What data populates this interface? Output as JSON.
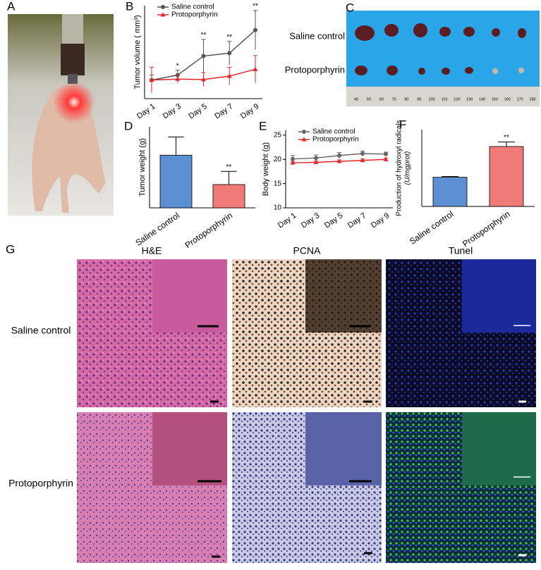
{
  "panel_labels": [
    "A",
    "B",
    "C",
    "D",
    "E",
    "F",
    "G"
  ],
  "chart_data": [
    {
      "type": "line",
      "ylabel": "Tumor volume ( mm³)",
      "categories": [
        "Day 1",
        "Day 3",
        "Day 5",
        "Day 7",
        "Day 9"
      ],
      "series": [
        {
          "name": "Saline control",
          "color": "#555555",
          "marker": "circle",
          "values": [
            190,
            240,
            435,
            465,
            700
          ],
          "errors": [
            50,
            50,
            170,
            120,
            200
          ]
        },
        {
          "name": "Protoporphyrin",
          "color": "#e0262b",
          "marker": "triangle",
          "values": [
            190,
            200,
            195,
            230,
            300
          ],
          "errors": [
            130,
            40,
            70,
            90,
            140
          ]
        }
      ],
      "annotations": [
        {
          "text": "*",
          "x": "Day 3"
        },
        {
          "text": "**",
          "x": "Day 5"
        },
        {
          "text": "**",
          "x": "Day 7"
        },
        {
          "text": "**",
          "x": "Day 9"
        }
      ],
      "ylim": [
        0,
        950
      ],
      "legend": "upper left"
    },
    {
      "type": "bar",
      "ylabel": "Tumor weight (g)",
      "categories": [
        "Saline control",
        "Protoporphyrin"
      ],
      "values": [
        0.52,
        0.23
      ],
      "errors": [
        0.18,
        0.13
      ],
      "colors": [
        "#5b8fd2",
        "#f07a78"
      ],
      "annotations": [
        {
          "text": "**",
          "x": "Protoporphyrin"
        }
      ],
      "ylim": [
        0,
        0.8
      ]
    },
    {
      "type": "line",
      "ylabel": "Body weight (g)",
      "categories": [
        "Day 1",
        "Day 3",
        "Day 5",
        "Day 7",
        "Day 9"
      ],
      "series": [
        {
          "name": "Saline control",
          "color": "#666666",
          "marker": "circle",
          "values": [
            20.1,
            20.3,
            20.8,
            21.2,
            21.1
          ],
          "errors": [
            0.7,
            0.6,
            0.6,
            0.5,
            0.4
          ]
        },
        {
          "name": "Protoporphyrin",
          "color": "#e0262b",
          "marker": "triangle",
          "values": [
            19.3,
            19.4,
            19.6,
            19.8,
            20.0
          ],
          "errors": [
            0.3,
            0.3,
            0.3,
            0.3,
            0.3
          ]
        }
      ],
      "ylim": [
        10,
        26
      ],
      "yticks": [
        10,
        15,
        20,
        25
      ],
      "legend": "upper left"
    },
    {
      "type": "bar",
      "ylabel": "Production of hydroxyl radicals",
      "ylabel2": "(U/mgprot)",
      "categories": [
        "Saline control",
        "Protoporphyrin"
      ],
      "values": [
        38,
        78
      ],
      "errors": [
        1,
        6
      ],
      "colors": [
        "#5b8fd2",
        "#f07a78"
      ],
      "annotations": [
        {
          "text": "**",
          "x": "Protoporphyrin"
        }
      ],
      "ylim": [
        0,
        100
      ]
    }
  ],
  "photo_c": {
    "row_labels": [
      "Saline control",
      "Protoporphyrin"
    ],
    "ruler": [
      40,
      50,
      60,
      70,
      80,
      90,
      100,
      110,
      120,
      130,
      140,
      150,
      160,
      170,
      180
    ]
  },
  "panel_g": {
    "columns": [
      "H&E",
      "PCNA",
      "Tunel"
    ],
    "rows": [
      "Saline control",
      "Protoporphyrin"
    ]
  }
}
